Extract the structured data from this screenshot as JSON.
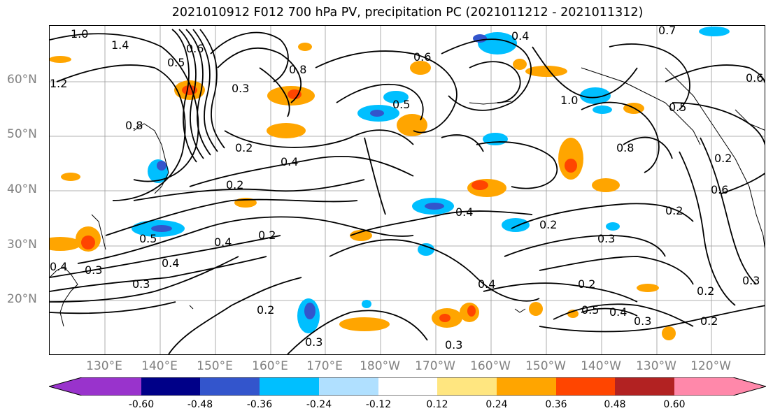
{
  "title": "2021010912 F012 700 hPa PV, precipitation PC (2021011212 - 2021011312)",
  "latitude_labels": [
    "60°N",
    "50°N",
    "40°N",
    "30°N",
    "20°N"
  ],
  "longitude_labels": [
    "130°E",
    "140°E",
    "150°E",
    "160°E",
    "170°E",
    "180°W",
    "170°W",
    "160°W",
    "150°W",
    "140°W",
    "130°W",
    "120°W"
  ],
  "contour_labels": [
    "1.0",
    "1.4",
    "1.2",
    "0.6",
    "0.8",
    "0.5",
    "0.3",
    "0.2",
    "0.4",
    "0.2",
    "0.4",
    "0.5",
    "0.4",
    "0.3",
    "0.2",
    "0.4",
    "0.3",
    "0.2",
    "0.3",
    "0.4",
    "0.6",
    "0.4",
    "0.7",
    "0.8",
    "0.5",
    "1.0",
    "0.8",
    "0.2",
    "0.3",
    "0.5",
    "0.4",
    "0.3",
    "0.2",
    "0.6",
    "0.2",
    "0.2",
    "0.3",
    "0.2",
    "0.5",
    "0.2",
    "0.3",
    "0.6",
    "0.4"
  ],
  "colorbar": {
    "ticks": [
      "-0.60",
      "-0.48",
      "-0.36",
      "-0.24",
      "-0.12",
      "0.12",
      "0.24",
      "0.36",
      "0.48",
      "0.60"
    ],
    "colors": [
      "#9933cc",
      "#000088",
      "#3355cc",
      "#00bfff",
      "#b0e0ff",
      "#ffffff",
      "#ffe680",
      "#ffa500",
      "#ff4500",
      "#b22222",
      "#ff88aa"
    ]
  }
}
